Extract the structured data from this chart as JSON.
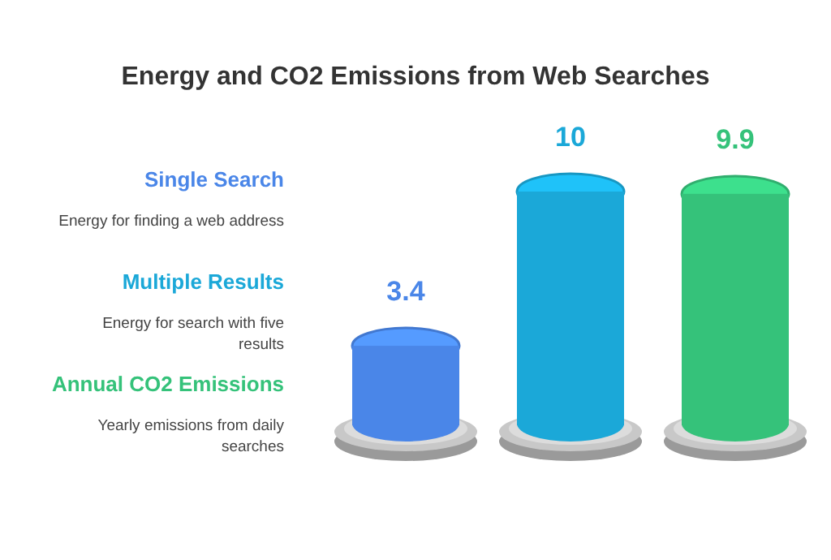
{
  "chart_data": {
    "type": "bar",
    "title": "Energy and CO2 Emissions from Web Searches",
    "categories": [
      null,
      null,
      null
    ],
    "values": [
      3.4,
      10,
      9.9
    ],
    "colors": [
      "#4a86e8",
      "#1ba8d8",
      "#35c27a"
    ],
    "data_labels": true,
    "annotations": [
      "Single Search",
      "Energy for finding a web address",
      "Multiple Results",
      "Energy for search with five results",
      "Annual CO2 Emissions",
      "Yearly emissions from daily searches"
    ]
  }
}
